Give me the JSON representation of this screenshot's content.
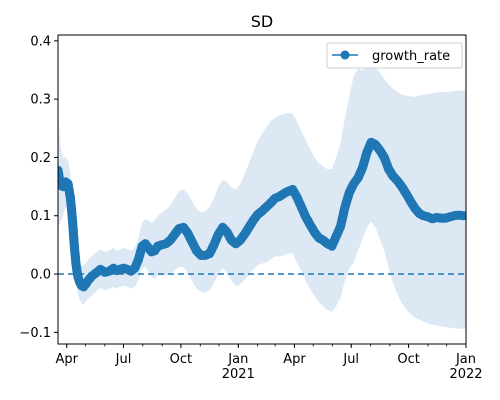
{
  "chart_data": {
    "type": "line",
    "title": "SD",
    "xlabel": "",
    "ylabel": "",
    "x_range": [
      "2020-03-18",
      "2022-01-01"
    ],
    "ylim": [
      -0.12,
      0.41
    ],
    "x_ticks": [
      {
        "date": "2020-04-01",
        "label": "Apr",
        "label2": ""
      },
      {
        "date": "2020-07-01",
        "label": "Jul",
        "label2": ""
      },
      {
        "date": "2020-10-01",
        "label": "Oct",
        "label2": ""
      },
      {
        "date": "2021-01-01",
        "label": "Jan",
        "label2": "2021"
      },
      {
        "date": "2021-04-01",
        "label": "Apr",
        "label2": ""
      },
      {
        "date": "2021-07-01",
        "label": "Jul",
        "label2": ""
      },
      {
        "date": "2021-10-01",
        "label": "Oct",
        "label2": ""
      },
      {
        "date": "2022-01-01",
        "label": "Jan",
        "label2": "2022"
      }
    ],
    "y_ticks": [
      {
        "value": -0.1,
        "label": "−0.1"
      },
      {
        "value": 0.0,
        "label": "0.0"
      },
      {
        "value": 0.1,
        "label": "0.1"
      },
      {
        "value": 0.2,
        "label": "0.2"
      },
      {
        "value": 0.3,
        "label": "0.3"
      },
      {
        "value": 0.4,
        "label": "0.4"
      }
    ],
    "reference_line": {
      "y": 0.0,
      "style": "dashed"
    },
    "legend": {
      "position": "top-right",
      "entries": [
        "growth_rate"
      ]
    },
    "grid": false,
    "colors": {
      "series": "#1f77b4",
      "band": "#dce9f5"
    },
    "series": [
      {
        "name": "growth_rate",
        "x": [
          "2020-03-18",
          "2020-03-22",
          "2020-03-26",
          "2020-03-30",
          "2020-04-03",
          "2020-04-07",
          "2020-04-10",
          "2020-04-13",
          "2020-04-16",
          "2020-04-19",
          "2020-04-22",
          "2020-04-25",
          "2020-04-28",
          "2020-05-01",
          "2020-05-06",
          "2020-05-12",
          "2020-05-18",
          "2020-05-25",
          "2020-06-01",
          "2020-06-08",
          "2020-06-15",
          "2020-06-20",
          "2020-06-25",
          "2020-07-01",
          "2020-07-07",
          "2020-07-13",
          "2020-07-19",
          "2020-07-25",
          "2020-07-31",
          "2020-08-05",
          "2020-08-10",
          "2020-08-15",
          "2020-08-20",
          "2020-08-25",
          "2020-08-31",
          "2020-09-07",
          "2020-09-14",
          "2020-09-21",
          "2020-09-28",
          "2020-10-05",
          "2020-10-12",
          "2020-10-19",
          "2020-10-26",
          "2020-11-02",
          "2020-11-09",
          "2020-11-16",
          "2020-11-23",
          "2020-11-30",
          "2020-12-07",
          "2020-12-14",
          "2020-12-21",
          "2020-12-28",
          "2021-01-04",
          "2021-01-11",
          "2021-01-18",
          "2021-01-25",
          "2021-02-01",
          "2021-02-08",
          "2021-02-15",
          "2021-02-22",
          "2021-03-01",
          "2021-03-08",
          "2021-03-15",
          "2021-03-22",
          "2021-03-29",
          "2021-04-05",
          "2021-04-12",
          "2021-04-19",
          "2021-04-26",
          "2021-05-03",
          "2021-05-10",
          "2021-05-17",
          "2021-05-24",
          "2021-05-31",
          "2021-06-07",
          "2021-06-14",
          "2021-06-21",
          "2021-06-28",
          "2021-07-05",
          "2021-07-12",
          "2021-07-19",
          "2021-07-26",
          "2021-08-02",
          "2021-08-09",
          "2021-08-16",
          "2021-08-23",
          "2021-08-30",
          "2021-09-06",
          "2021-09-13",
          "2021-09-20",
          "2021-09-27",
          "2021-10-04",
          "2021-10-11",
          "2021-10-18",
          "2021-10-25",
          "2021-11-01",
          "2021-11-08",
          "2021-11-15",
          "2021-11-22",
          "2021-11-29",
          "2021-12-06",
          "2021-12-13",
          "2021-12-20",
          "2021-12-27",
          "2022-01-01"
        ],
        "values": [
          0.178,
          0.152,
          0.15,
          0.158,
          0.155,
          0.13,
          0.095,
          0.05,
          0.015,
          -0.005,
          -0.015,
          -0.02,
          -0.022,
          -0.018,
          -0.01,
          -0.003,
          0.002,
          0.008,
          0.003,
          0.005,
          0.01,
          0.006,
          0.008,
          0.01,
          0.008,
          0.005,
          0.01,
          0.025,
          0.048,
          0.052,
          0.045,
          0.038,
          0.04,
          0.048,
          0.05,
          0.052,
          0.058,
          0.068,
          0.078,
          0.08,
          0.07,
          0.055,
          0.04,
          0.032,
          0.032,
          0.035,
          0.05,
          0.068,
          0.08,
          0.072,
          0.058,
          0.052,
          0.058,
          0.068,
          0.08,
          0.092,
          0.102,
          0.108,
          0.115,
          0.122,
          0.13,
          0.133,
          0.138,
          0.142,
          0.145,
          0.132,
          0.115,
          0.098,
          0.085,
          0.072,
          0.062,
          0.058,
          0.052,
          0.048,
          0.065,
          0.082,
          0.115,
          0.14,
          0.155,
          0.165,
          0.182,
          0.208,
          0.226,
          0.222,
          0.212,
          0.2,
          0.18,
          0.168,
          0.16,
          0.15,
          0.138,
          0.125,
          0.113,
          0.104,
          0.1,
          0.098,
          0.095,
          0.097,
          0.096,
          0.096,
          0.098,
          0.1,
          0.101,
          0.1,
          0.1
        ],
        "band_upper": [
          0.28,
          0.22,
          0.2,
          0.2,
          0.195,
          0.17,
          0.13,
          0.085,
          0.05,
          0.03,
          0.02,
          0.015,
          0.015,
          0.018,
          0.025,
          0.032,
          0.037,
          0.042,
          0.038,
          0.04,
          0.045,
          0.04,
          0.042,
          0.045,
          0.043,
          0.04,
          0.045,
          0.062,
          0.088,
          0.095,
          0.092,
          0.088,
          0.092,
          0.1,
          0.105,
          0.11,
          0.118,
          0.13,
          0.142,
          0.145,
          0.138,
          0.125,
          0.112,
          0.105,
          0.108,
          0.115,
          0.13,
          0.15,
          0.162,
          0.158,
          0.148,
          0.145,
          0.155,
          0.17,
          0.19,
          0.21,
          0.228,
          0.24,
          0.252,
          0.262,
          0.268,
          0.272,
          0.275,
          0.276,
          0.275,
          0.262,
          0.245,
          0.23,
          0.215,
          0.2,
          0.19,
          0.185,
          0.18,
          0.18,
          0.2,
          0.225,
          0.268,
          0.305,
          0.34,
          0.352,
          0.35,
          0.355,
          0.362,
          0.355,
          0.345,
          0.335,
          0.325,
          0.318,
          0.312,
          0.308,
          0.306,
          0.305,
          0.304,
          0.306,
          0.308,
          0.309,
          0.31,
          0.312,
          0.312,
          0.313,
          0.313,
          0.314,
          0.315,
          0.315,
          0.315
        ],
        "band_lower": [
          0.08,
          0.09,
          0.1,
          0.115,
          0.115,
          0.09,
          0.06,
          0.02,
          -0.015,
          -0.035,
          -0.045,
          -0.05,
          -0.052,
          -0.048,
          -0.042,
          -0.036,
          -0.03,
          -0.024,
          -0.028,
          -0.026,
          -0.022,
          -0.025,
          -0.022,
          -0.02,
          -0.022,
          -0.025,
          -0.022,
          -0.01,
          0.01,
          0.012,
          0.005,
          -0.005,
          -0.008,
          -0.002,
          -0.002,
          -0.003,
          0.0,
          0.006,
          0.012,
          0.012,
          0.002,
          -0.012,
          -0.025,
          -0.03,
          -0.032,
          -0.028,
          -0.015,
          0.0,
          0.01,
          0.002,
          -0.012,
          -0.02,
          -0.018,
          -0.01,
          0.0,
          0.008,
          0.015,
          0.018,
          0.02,
          0.025,
          0.03,
          0.03,
          0.032,
          0.035,
          0.035,
          0.02,
          0.005,
          -0.012,
          -0.025,
          -0.038,
          -0.048,
          -0.055,
          -0.062,
          -0.065,
          -0.055,
          -0.04,
          -0.01,
          0.01,
          0.02,
          0.04,
          0.06,
          0.08,
          0.09,
          0.08,
          0.06,
          0.04,
          0.01,
          -0.015,
          -0.035,
          -0.05,
          -0.06,
          -0.068,
          -0.075,
          -0.078,
          -0.082,
          -0.085,
          -0.087,
          -0.088,
          -0.09,
          -0.091,
          -0.092,
          -0.093,
          -0.094,
          -0.094,
          -0.094
        ]
      }
    ]
  }
}
